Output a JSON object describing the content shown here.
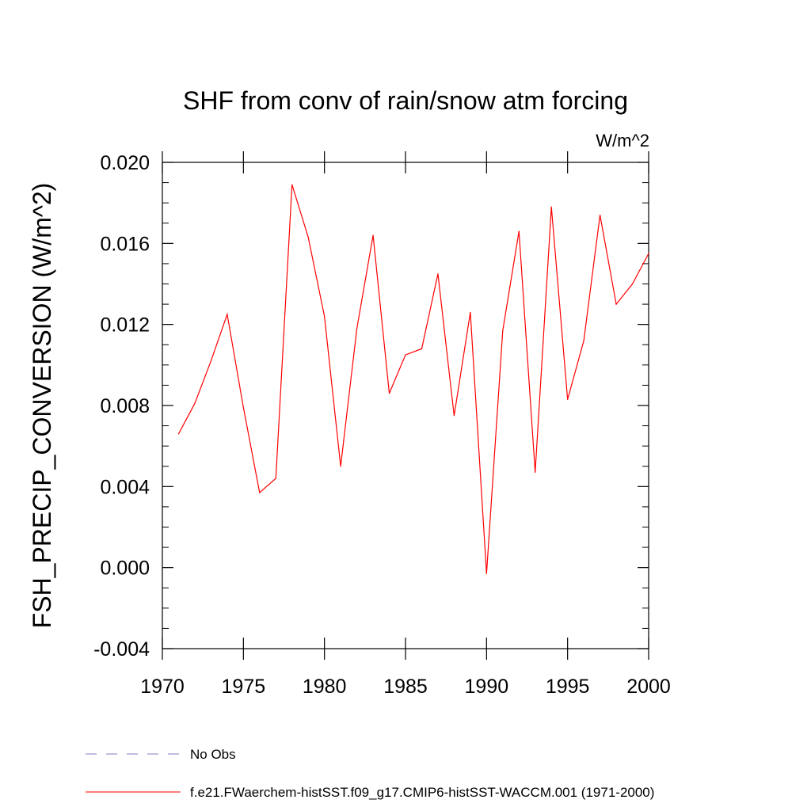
{
  "chart_data": {
    "type": "line",
    "title": "SHF from conv of rain/snow atm forcing",
    "units": "W/m^2",
    "ylabel": "FSH_PRECIP_CONVERSION  (W/m^2)",
    "xlabel": "",
    "xlim": [
      1970,
      2000
    ],
    "ylim": [
      -0.004,
      0.02
    ],
    "x_ticks": [
      "1970",
      "1975",
      "1980",
      "1985",
      "1990",
      "1995",
      "2000"
    ],
    "y_ticks": [
      "-0.004",
      "0.000",
      "0.004",
      "0.008",
      "0.012",
      "0.016",
      "0.020"
    ],
    "grid": false,
    "legend_placement": "bottom",
    "series": [
      {
        "name": "f.e21.FWaerchem-histSST.f09_g17.CMIP6-histSST-WACCM.001 (1971-2000)",
        "color": "#ff0000",
        "line_style": "solid",
        "x": [
          1971,
          1972,
          1973,
          1974,
          1975,
          1976,
          1977,
          1978,
          1979,
          1980,
          1981,
          1982,
          1983,
          1984,
          1985,
          1986,
          1987,
          1988,
          1989,
          1990,
          1991,
          1992,
          1993,
          1994,
          1995,
          1996,
          1997,
          1998,
          1999,
          2000
        ],
        "values": [
          0.0066,
          0.0081,
          0.0102,
          0.0125,
          0.0079,
          0.0037,
          0.0044,
          0.0189,
          0.0163,
          0.0124,
          0.005,
          0.0118,
          0.0164,
          0.0086,
          0.0105,
          0.0108,
          0.0145,
          0.0075,
          0.0126,
          -0.0003,
          0.0117,
          0.0166,
          0.0047,
          0.0178,
          0.0083,
          0.0112,
          0.0174,
          0.013,
          0.014,
          0.0155
        ]
      }
    ],
    "legend": [
      {
        "label": "No Obs",
        "color": "#7f7fc0",
        "line_style": "dashed"
      },
      {
        "label": "f.e21.FWaerchem-histSST.f09_g17.CMIP6-histSST-WACCM.001 (1971-2000)",
        "color": "#ff0000",
        "line_style": "solid"
      }
    ]
  }
}
